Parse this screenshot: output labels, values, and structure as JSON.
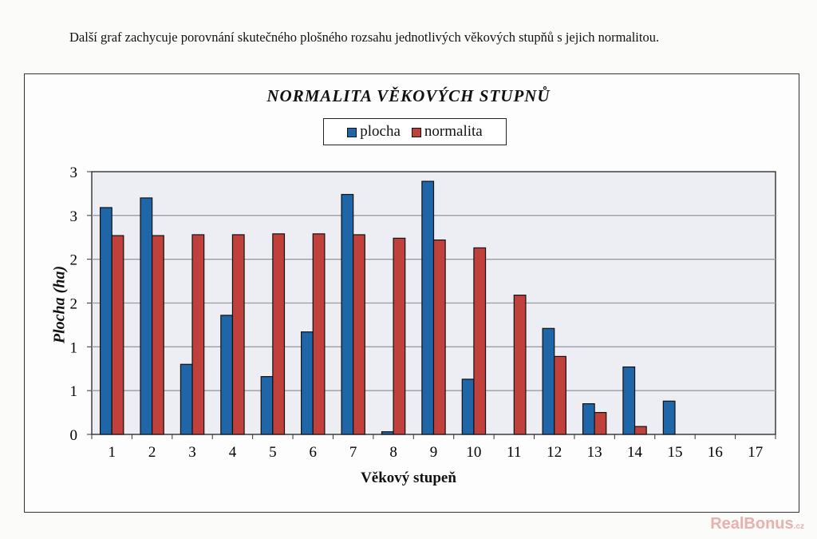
{
  "document": {
    "paragraph": "Další graf zachycuje porovnání skutečného plošného rozsahu jednotlivých věkových stupňů s jejich normalitou."
  },
  "watermark": {
    "brand": "RealBonus",
    "tld": ".cz"
  },
  "chart_data": {
    "type": "bar",
    "title": "NORMALITA VĚKOVÝCH STUPNŮ",
    "xlabel": "Věkový stupeň",
    "ylabel": "Plocha (ha)",
    "categories": [
      "1",
      "2",
      "3",
      "4",
      "5",
      "6",
      "7",
      "8",
      "9",
      "10",
      "11",
      "12",
      "13",
      "14",
      "15",
      "16",
      "17"
    ],
    "yticks": [
      0,
      0.5,
      1,
      1.5,
      2,
      2.5,
      3
    ],
    "ytick_labels": [
      "0",
      "1",
      "1",
      "2",
      "2",
      "3",
      "3"
    ],
    "ylim": [
      0,
      3
    ],
    "grid": true,
    "legend_position": "top-center",
    "series": [
      {
        "name": "plocha",
        "color": "#1f66a8",
        "values": [
          2.59,
          2.7,
          0.8,
          1.36,
          0.66,
          1.17,
          2.74,
          0.03,
          2.89,
          0.63,
          0,
          1.21,
          0.35,
          0.77,
          0.38,
          0,
          0
        ]
      },
      {
        "name": "normalita",
        "color": "#c0403c",
        "values": [
          2.27,
          2.27,
          2.28,
          2.28,
          2.29,
          2.29,
          2.28,
          2.24,
          2.22,
          2.13,
          1.59,
          0.89,
          0.25,
          0.09,
          0,
          0,
          0
        ]
      }
    ]
  }
}
